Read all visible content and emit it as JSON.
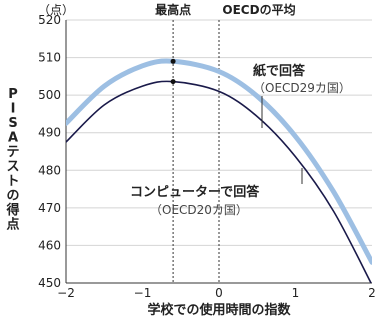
{
  "chart_data": {
    "type": "line",
    "unit_label": "（点）",
    "ylabel": "PISAテストの得点",
    "xlabel": "学校での使用時間の指数",
    "xlim": [
      -2,
      2
    ],
    "ylim": [
      450,
      520
    ],
    "x_ticks": [
      "−2",
      "−1",
      "0",
      "1",
      "2"
    ],
    "y_ticks": [
      "450",
      "460",
      "470",
      "480",
      "490",
      "500",
      "510",
      "520"
    ],
    "x": [
      -2.0,
      -1.5,
      -1.0,
      -0.6,
      0.0,
      0.5,
      1.0,
      1.5,
      2.0
    ],
    "series": [
      {
        "name": "紙で回答",
        "note": "（OECD29カ国）",
        "color": "#9dbfe3",
        "values": [
          492.5,
          502.4,
          507.8,
          509.0,
          506.3,
          499.7,
          489.0,
          474.2,
          455.5
        ]
      },
      {
        "name": "コンピューターで回答",
        "note": "（OECD20カ国）",
        "color": "#1a1a4a",
        "values": [
          487.5,
          497.4,
          502.4,
          503.6,
          501.0,
          494.3,
          483.6,
          469.0,
          449.5
        ]
      }
    ],
    "annotations": {
      "max_label": "最高点",
      "max_x": -0.6,
      "oecd_label": "OECDの平均",
      "oecd_x": 0
    }
  }
}
